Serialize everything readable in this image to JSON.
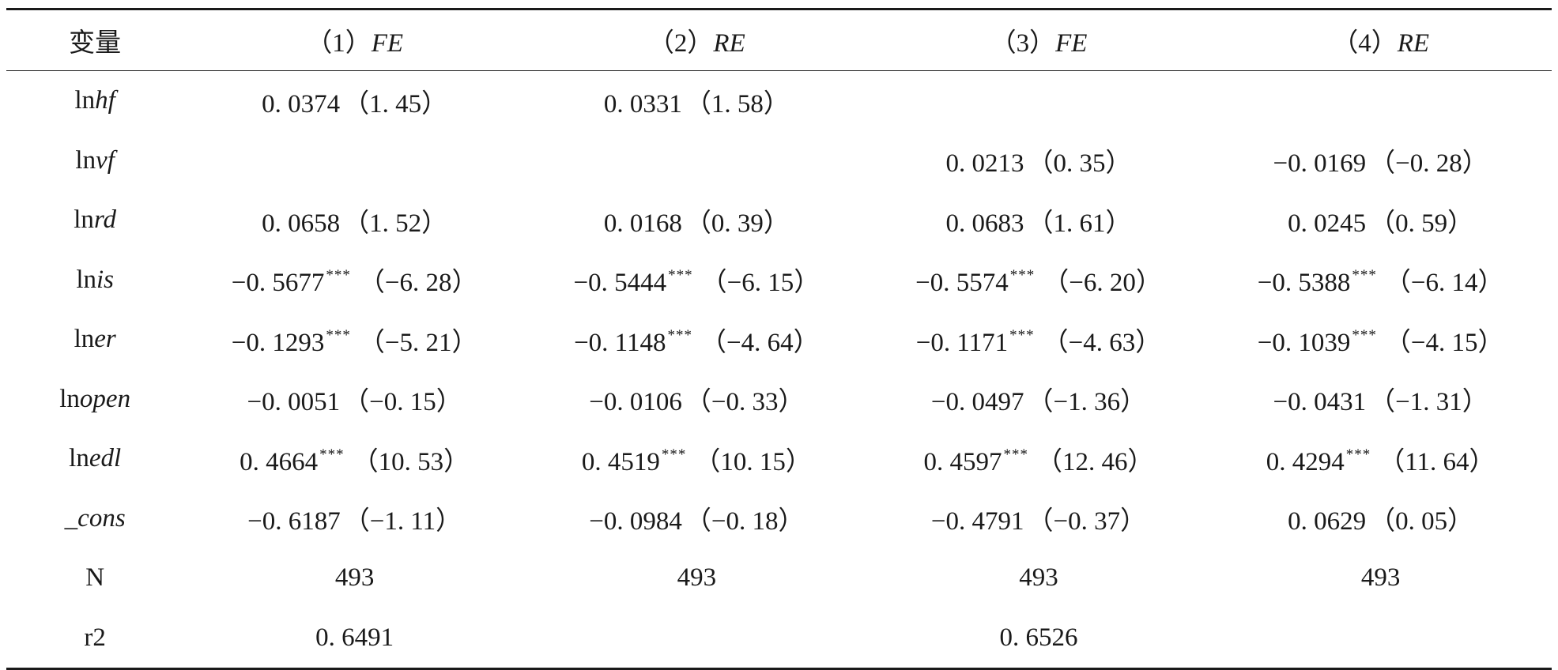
{
  "header": {
    "variable": "变量",
    "columns": [
      {
        "num": "（1）",
        "model": "FE"
      },
      {
        "num": "（2）",
        "model": "RE"
      },
      {
        "num": "（3）",
        "model": "FE"
      },
      {
        "num": "（4）",
        "model": "RE"
      }
    ]
  },
  "rows": [
    {
      "pre": "ln",
      "italic": "hf",
      "cells": [
        {
          "coef": "0. 0374",
          "stars": "",
          "t": "（1. 45）"
        },
        {
          "coef": "0. 0331",
          "stars": "",
          "t": "（1. 58）"
        },
        {
          "coef": "",
          "stars": "",
          "t": ""
        },
        {
          "coef": "",
          "stars": "",
          "t": ""
        }
      ]
    },
    {
      "pre": "ln",
      "italic": "vf",
      "cells": [
        {
          "coef": "",
          "stars": "",
          "t": ""
        },
        {
          "coef": "",
          "stars": "",
          "t": ""
        },
        {
          "coef": "0. 0213",
          "stars": "",
          "t": "（0. 35）"
        },
        {
          "coef": "−0. 0169",
          "stars": "",
          "t": "（−0. 28）"
        }
      ]
    },
    {
      "pre": "ln",
      "italic": "rd",
      "cells": [
        {
          "coef": "0. 0658",
          "stars": "",
          "t": "（1. 52）"
        },
        {
          "coef": "0. 0168",
          "stars": "",
          "t": "（0. 39）"
        },
        {
          "coef": "0. 0683",
          "stars": "",
          "t": "（1. 61）"
        },
        {
          "coef": "0. 0245",
          "stars": "",
          "t": "（0. 59）"
        }
      ]
    },
    {
      "pre": "ln",
      "italic": "is",
      "cells": [
        {
          "coef": "−0. 5677",
          "stars": "***",
          "t": "（−6. 28）"
        },
        {
          "coef": "−0. 5444",
          "stars": "***",
          "t": "（−6. 15）"
        },
        {
          "coef": "−0. 5574",
          "stars": "***",
          "t": "（−6. 20）"
        },
        {
          "coef": "−0. 5388",
          "stars": "***",
          "t": "（−6. 14）"
        }
      ]
    },
    {
      "pre": "ln",
      "italic": "er",
      "cells": [
        {
          "coef": "−0. 1293",
          "stars": "***",
          "t": "（−5. 21）"
        },
        {
          "coef": "−0. 1148",
          "stars": "***",
          "t": "（−4. 64）"
        },
        {
          "coef": "−0. 1171",
          "stars": "***",
          "t": "（−4. 63）"
        },
        {
          "coef": "−0. 1039",
          "stars": "***",
          "t": "（−4. 15）"
        }
      ]
    },
    {
      "pre": "ln",
      "italic": "open",
      "cells": [
        {
          "coef": "−0. 0051",
          "stars": "",
          "t": "（−0. 15）"
        },
        {
          "coef": "−0. 0106",
          "stars": "",
          "t": "（−0. 33）"
        },
        {
          "coef": "−0. 0497",
          "stars": "",
          "t": "（−1. 36）"
        },
        {
          "coef": "−0. 0431",
          "stars": "",
          "t": "（−1. 31）"
        }
      ]
    },
    {
      "pre": "ln",
      "italic": "edl",
      "cells": [
        {
          "coef": "0. 4664",
          "stars": "***",
          "t": "（10. 53）"
        },
        {
          "coef": "0. 4519",
          "stars": "***",
          "t": "（10. 15）"
        },
        {
          "coef": "0. 4597",
          "stars": "***",
          "t": "（12. 46）"
        },
        {
          "coef": "0. 4294",
          "stars": "***",
          "t": "（11. 64）"
        }
      ]
    },
    {
      "pre": "",
      "italic": "_cons",
      "cells": [
        {
          "coef": "−0. 6187",
          "stars": "",
          "t": "（−1. 11）"
        },
        {
          "coef": "−0. 0984",
          "stars": "",
          "t": "（−0. 18）"
        },
        {
          "coef": "−0. 4791",
          "stars": "",
          "t": "（−0. 37）"
        },
        {
          "coef": "0. 0629",
          "stars": "",
          "t": "（0. 05）"
        }
      ]
    },
    {
      "pre": "N",
      "italic": "",
      "cells": [
        {
          "coef": "493",
          "stars": "",
          "t": ""
        },
        {
          "coef": "493",
          "stars": "",
          "t": ""
        },
        {
          "coef": "493",
          "stars": "",
          "t": ""
        },
        {
          "coef": "493",
          "stars": "",
          "t": ""
        }
      ]
    },
    {
      "pre": "r2",
      "italic": "",
      "cells": [
        {
          "coef": "0. 6491",
          "stars": "",
          "t": ""
        },
        {
          "coef": "",
          "stars": "",
          "t": ""
        },
        {
          "coef": "0. 6526",
          "stars": "",
          "t": ""
        },
        {
          "coef": "",
          "stars": "",
          "t": ""
        }
      ]
    }
  ]
}
